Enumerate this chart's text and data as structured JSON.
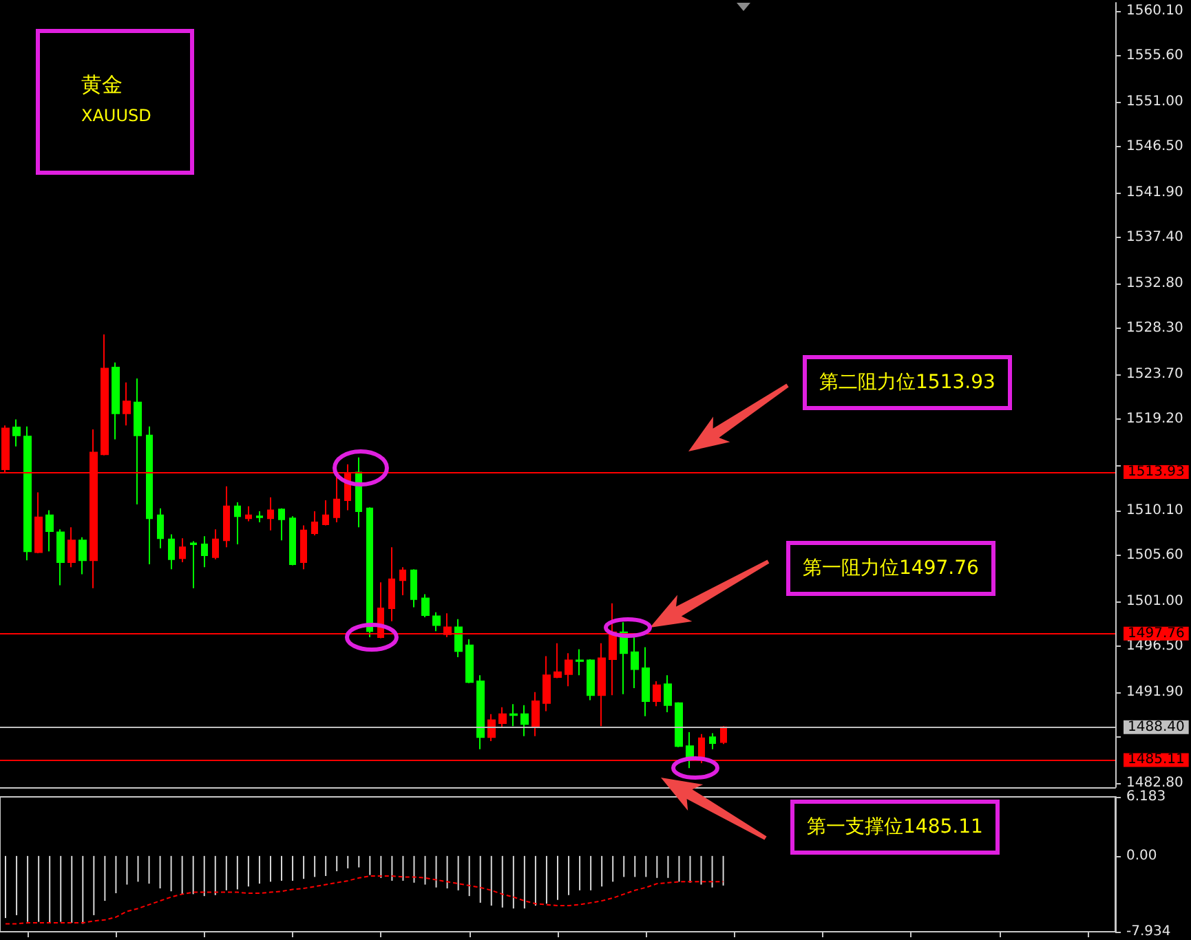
{
  "chart_data": [
    {
      "type": "candlestick",
      "title": "黄金",
      "subtitle": "XAUUSD",
      "categories": [
        null,
        null,
        null,
        null,
        null,
        null,
        null,
        null,
        null,
        null,
        null,
        null,
        null,
        null,
        null,
        null,
        null,
        null,
        null,
        null,
        null,
        null,
        null,
        null,
        null,
        null,
        null,
        null,
        null,
        null,
        null,
        null,
        null,
        null,
        null,
        null,
        null,
        null,
        null,
        null,
        null,
        null,
        null,
        null,
        null,
        null,
        null,
        null,
        null,
        null,
        null,
        null,
        null,
        null,
        null,
        null,
        null,
        null,
        null,
        null,
        null,
        null,
        null,
        null,
        null,
        null,
        null,
        null,
        null,
        null,
        null,
        null,
        null,
        null,
        null,
        null,
        null,
        null,
        null,
        null,
        null,
        null,
        null,
        null,
        null,
        null,
        null,
        null,
        null,
        null,
        null,
        null,
        null,
        null,
        null,
        null,
        null,
        null,
        null,
        null,
        null
      ],
      "ohlc": [
        [
          1514.2,
          1518.6,
          1513.9,
          1518.3
        ],
        [
          1518.4,
          1519.2,
          1516.5,
          1517.6
        ],
        [
          1517.5,
          1518.5,
          1505.1,
          1506.0
        ],
        [
          1505.9,
          1511.9,
          1505.8,
          1509.4
        ],
        [
          1509.6,
          1510.1,
          1506.0,
          1508.0
        ],
        [
          1507.9,
          1508.2,
          1502.6,
          1504.9
        ],
        [
          1504.9,
          1508.4,
          1504.4,
          1507.1
        ],
        [
          1507.1,
          1507.4,
          1503.7,
          1505.1
        ],
        [
          1505.1,
          1518.2,
          1502.3,
          1515.9
        ],
        [
          1515.7,
          1527.7,
          1515.6,
          1524.3
        ],
        [
          1524.4,
          1524.9,
          1517.2,
          1519.8
        ],
        [
          1519.8,
          1522.9,
          1518.6,
          1521.0
        ],
        [
          1520.9,
          1523.3,
          1510.7,
          1517.6
        ],
        [
          1517.6,
          1518.5,
          1504.7,
          1509.3
        ],
        [
          1509.6,
          1510.3,
          1506.3,
          1507.3
        ],
        [
          1507.2,
          1507.7,
          1504.2,
          1505.2
        ],
        [
          1505.3,
          1507.3,
          1504.9,
          1506.4
        ],
        [
          1506.8,
          1507.0,
          1502.3,
          1506.7
        ],
        [
          1506.7,
          1507.5,
          1504.4,
          1505.6
        ],
        [
          1505.4,
          1508.2,
          1505.2,
          1507.2
        ],
        [
          1507.1,
          1512.5,
          1506.4,
          1510.5
        ],
        [
          1510.5,
          1510.9,
          1506.7,
          1509.5
        ],
        [
          1509.3,
          1510.5,
          1509.0,
          1509.6
        ],
        [
          1509.5,
          1510.0,
          1508.9,
          1509.4
        ],
        [
          1509.3,
          1511.4,
          1508.1,
          1510.1
        ],
        [
          1510.2,
          1510.3,
          1507.1,
          1509.2
        ],
        [
          1509.3,
          1509.5,
          1504.6,
          1504.7
        ],
        [
          1504.9,
          1508.6,
          1504.2,
          1508.1
        ],
        [
          1507.8,
          1510.0,
          1507.6,
          1508.9
        ],
        [
          1508.7,
          1511.1,
          1508.6,
          1509.6
        ],
        [
          1509.4,
          1513.7,
          1508.9,
          1511.2
        ],
        [
          1511.1,
          1514.7,
          1510.1,
          1513.8
        ],
        [
          1513.9,
          1515.4,
          1508.4,
          1510.0
        ],
        [
          1510.3,
          1510.4,
          1497.4,
          1498.0
        ],
        [
          1497.4,
          1502.9,
          1497.3,
          1500.3
        ],
        [
          1500.3,
          1506.4,
          1499.0,
          1503.2
        ],
        [
          1503.1,
          1504.4,
          1501.6,
          1504.1
        ],
        [
          1504.1,
          1504.2,
          1500.4,
          1501.2
        ],
        [
          1501.3,
          1501.7,
          1499.4,
          1499.6
        ],
        [
          1499.5,
          1499.9,
          1498.0,
          1498.6
        ],
        [
          1497.7,
          1499.8,
          1497.4,
          1498.4
        ],
        [
          1498.4,
          1499.2,
          1495.4,
          1496.0
        ],
        [
          1496.6,
          1497.2,
          1492.8,
          1492.9
        ],
        [
          1493.0,
          1493.6,
          1486.2,
          1487.4
        ],
        [
          1487.4,
          1489.7,
          1487.0,
          1489.1
        ],
        [
          1488.8,
          1490.4,
          1488.4,
          1489.7
        ],
        [
          1489.7,
          1490.7,
          1488.5,
          1489.6
        ],
        [
          1489.7,
          1490.6,
          1487.5,
          1488.7
        ],
        [
          1488.4,
          1491.9,
          1487.5,
          1491.0
        ],
        [
          1490.8,
          1495.5,
          1490.0,
          1493.6
        ],
        [
          1493.4,
          1496.8,
          1493.3,
          1493.9
        ],
        [
          1493.7,
          1495.8,
          1492.5,
          1495.1
        ],
        [
          1495.1,
          1496.2,
          1493.6,
          1495.0
        ],
        [
          1495.1,
          1495.2,
          1491.1,
          1491.6
        ],
        [
          1491.6,
          1496.8,
          1488.5,
          1495.3
        ],
        [
          1495.2,
          1500.8,
          1491.6,
          1497.9
        ],
        [
          1497.9,
          1498.9,
          1491.7,
          1495.8
        ],
        [
          1495.9,
          1497.6,
          1492.3,
          1494.2
        ],
        [
          1494.3,
          1496.4,
          1489.5,
          1491.0
        ],
        [
          1491.0,
          1493.0,
          1490.5,
          1492.6
        ],
        [
          1492.7,
          1493.6,
          1489.9,
          1490.6
        ],
        [
          1490.8,
          1490.9,
          1486.4,
          1486.5
        ],
        [
          1486.5,
          1487.9,
          1484.3,
          1485.2
        ],
        [
          1485.2,
          1487.7,
          1484.8,
          1487.3
        ],
        [
          1487.4,
          1487.8,
          1486.2,
          1486.8
        ],
        [
          1486.9,
          1488.5,
          1486.7,
          1488.4
        ],
        null,
        null,
        null,
        null,
        null,
        null,
        null,
        null,
        null,
        null,
        null,
        null,
        null,
        null,
        null,
        null,
        null,
        null,
        null,
        null,
        null,
        null,
        null,
        null,
        null,
        null,
        null,
        null,
        null,
        null,
        null,
        null,
        null,
        null,
        null
      ],
      "colors": [
        "#ff0000",
        "#00ff00",
        "#00ff00",
        "#ff0000",
        "#00ff00",
        "#00ff00",
        "#ff0000",
        "#00ff00",
        "#ff0000",
        "#ff0000",
        "#00ff00",
        "#ff0000",
        "#00ff00",
        "#00ff00",
        "#00ff00",
        "#00ff00",
        "#ff0000",
        "#00ff00",
        "#00ff00",
        "#ff0000",
        "#ff0000",
        "#00ff00",
        "#ff0000",
        "#00ff00",
        "#ff0000",
        "#00ff00",
        "#00ff00",
        "#ff0000",
        "#ff0000",
        "#ff0000",
        "#ff0000",
        "#ff0000",
        "#00ff00",
        "#00ff00",
        "#ff0000",
        "#ff0000",
        "#ff0000",
        "#00ff00",
        "#00ff00",
        "#00ff00",
        "#ff0000",
        "#00ff00",
        "#00ff00",
        "#00ff00",
        "#ff0000",
        "#ff0000",
        "#00ff00",
        "#00ff00",
        "#ff0000",
        "#ff0000",
        "#ff0000",
        "#ff0000",
        "#00ff00",
        "#00ff00",
        "#ff0000",
        "#ff0000",
        "#00ff00",
        "#00ff00",
        "#00ff00",
        "#ff0000",
        "#00ff00",
        "#00ff00",
        "#00ff00",
        "#ff0000",
        "#00ff00",
        "#ff0000",
        null,
        null,
        null,
        null,
        null,
        null,
        null,
        null,
        null,
        null,
        null,
        null,
        null,
        null,
        null,
        null,
        null,
        null,
        null,
        null,
        null,
        null,
        null,
        null,
        null,
        null,
        null,
        null,
        null,
        null,
        null,
        null,
        null,
        null,
        null
      ],
      "ylim": [
        1482.4,
        1560.9
      ],
      "yticks": [
        {
          "value": 1482.8,
          "label": "1482.80"
        },
        {
          "value": 1487.4,
          "label": null
        },
        {
          "value": 1491.9,
          "label": "1491.90"
        },
        {
          "value": 1496.5,
          "label": "1496.50"
        },
        {
          "value": 1501,
          "label": "1501.00"
        },
        {
          "value": 1505.6,
          "label": "1505.60"
        },
        {
          "value": 1510.1,
          "label": "1510.10"
        },
        {
          "value": 1514.6,
          "label": null
        },
        {
          "value": 1519.2,
          "label": "1519.20"
        },
        {
          "value": 1523.7,
          "label": "1523.70"
        },
        {
          "value": 1528.3,
          "label": "1528.30"
        },
        {
          "value": 1532.8,
          "label": "1532.80"
        },
        {
          "value": 1537.4,
          "label": "1537.40"
        },
        {
          "value": 1541.9,
          "label": "1541.90"
        },
        {
          "value": 1546.5,
          "label": "1546.50"
        },
        {
          "value": 1551,
          "label": "1551.00"
        },
        {
          "value": 1555.6,
          "label": "1555.60"
        },
        {
          "value": 1560.1,
          "label": "1560.10"
        }
      ],
      "tick_labels": "y",
      "ref_lines": [
        {
          "axis": "y",
          "value": 1513.93,
          "label": "1513.93",
          "color": "#ff0000"
        },
        {
          "axis": "y",
          "value": 1497.76,
          "label": "1497.76",
          "color": "#ff0000"
        },
        {
          "axis": "y",
          "value": 1488.4,
          "label": "1488.40",
          "color": "#c0c0c0"
        },
        {
          "axis": "y",
          "value": 1485.11,
          "label": "1485.11",
          "color": "#ff0000"
        }
      ],
      "annotations": [
        "第二阻力位1513.93",
        "第一阻力位1497.76",
        "第一支撑位1485.11"
      ]
    },
    {
      "type": "bar",
      "categories": [
        null,
        null,
        null,
        null,
        null,
        null,
        null,
        null,
        null,
        null,
        null,
        null,
        null,
        null,
        null,
        null,
        null,
        null,
        null,
        null,
        null,
        null,
        null,
        null,
        null,
        null,
        null,
        null,
        null,
        null,
        null,
        null,
        null,
        null,
        null,
        null,
        null,
        null,
        null,
        null,
        null,
        null,
        null,
        null,
        null,
        null,
        null,
        null,
        null,
        null,
        null,
        null,
        null,
        null,
        null,
        null,
        null,
        null,
        null,
        null,
        null,
        null,
        null,
        null,
        null,
        null,
        null,
        null,
        null,
        null,
        null,
        null,
        null,
        null,
        null,
        null,
        null,
        null,
        null,
        null,
        null,
        null,
        null,
        null,
        null,
        null,
        null,
        null,
        null,
        null,
        null,
        null,
        null,
        null,
        null,
        null,
        null,
        null,
        null,
        null,
        null
      ],
      "series": [
        {
          "color": "#d8d8d8",
          "values": [
            -6.5,
            -6.2,
            -6.9,
            -6.9,
            -7.0,
            -6.9,
            -7.0,
            -7.1,
            -6.2,
            -4.7,
            -3.9,
            -3.0,
            -2.7,
            -2.9,
            -3.4,
            -3.7,
            -4.0,
            -4.0,
            -4.2,
            -4.1,
            -3.6,
            -3.5,
            -3.2,
            -2.9,
            -2.7,
            -2.6,
            -2.6,
            -2.4,
            -2.2,
            -2.1,
            -1.6,
            -1.3,
            -1.2,
            -2.0,
            -2.3,
            -2.6,
            -2.6,
            -2.8,
            -3.0,
            -3.3,
            -3.4,
            -3.6,
            -4.2,
            -4.9,
            -5.2,
            -5.4,
            -5.5,
            -5.5,
            -5.2,
            -5.0,
            -4.6,
            -4.1,
            -3.6,
            -3.6,
            -3.2,
            -2.7,
            -2.2,
            -2.2,
            -2.2,
            -2.3,
            -2.3,
            -2.7,
            -2.8,
            -3.0,
            -3.3,
            -3.1,
            null,
            null,
            null,
            null,
            null,
            null,
            null,
            null,
            null,
            null,
            null,
            null,
            null,
            null,
            null,
            null,
            null,
            null,
            null,
            null,
            null,
            null,
            null,
            null,
            null,
            null,
            null,
            null,
            null,
            null,
            null,
            null,
            null,
            null,
            null
          ]
        },
        {
          "type": "line",
          "color": "#ff0000",
          "values": [
            -7.1,
            -7.1,
            -7.0,
            -7.0,
            -7.0,
            -7.0,
            -7.0,
            -7.0,
            -6.8,
            -6.7,
            -6.4,
            -5.8,
            -5.5,
            -5.1,
            -4.7,
            -4.3,
            -4.0,
            -3.8,
            -3.8,
            -3.8,
            -3.8,
            -3.8,
            -3.9,
            -3.9,
            -3.8,
            -3.7,
            -3.5,
            -3.4,
            -3.2,
            -3.0,
            -2.8,
            -2.6,
            -2.3,
            -2.1,
            -2.1,
            -2.1,
            -2.2,
            -2.2,
            -2.3,
            -2.5,
            -2.7,
            -2.9,
            -3.1,
            -3.3,
            -3.6,
            -4.0,
            -4.3,
            -4.7,
            -5.0,
            -5.1,
            -5.2,
            -5.2,
            -5.1,
            -4.9,
            -4.7,
            -4.4,
            -4.0,
            -3.6,
            -3.3,
            -2.9,
            -2.8,
            -2.7,
            -2.7,
            -2.7,
            -2.7,
            -2.7,
            null,
            null,
            null,
            null,
            null,
            null,
            null,
            null,
            null,
            null,
            null,
            null,
            null,
            null,
            null,
            null,
            null,
            null,
            null,
            null,
            null,
            null,
            null,
            null,
            null,
            null,
            null,
            null,
            null,
            null,
            null,
            null,
            null,
            null,
            null
          ]
        }
      ],
      "ylim": [
        -7.934,
        6.183
      ],
      "yticks": [
        -7.934,
        {
          "value": 0,
          "label": "0.00"
        },
        6.183
      ],
      "tick_labels": "y",
      "line_style": "dotted"
    }
  ]
}
